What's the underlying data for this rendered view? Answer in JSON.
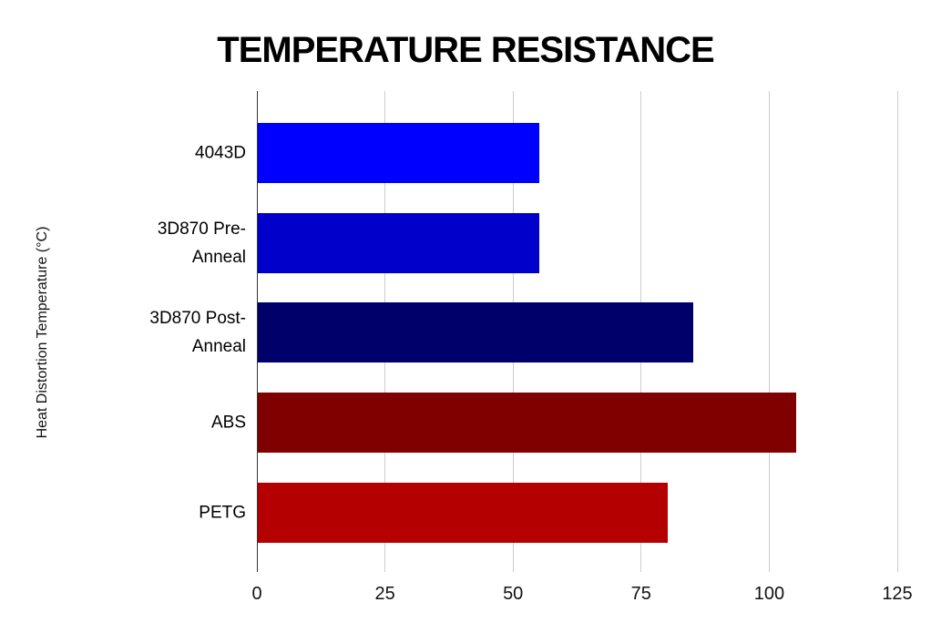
{
  "chart_data": {
    "type": "bar",
    "orientation": "horizontal",
    "title": "TEMPERATURE RESISTANCE",
    "xlabel": "",
    "ylabel": "Heat Distortion Temperature (°C)",
    "categories": [
      "4043D",
      "3D870 Pre-Anneal",
      "3D870 Post-Anneal",
      "ABS",
      "PETG"
    ],
    "values": [
      55,
      55,
      85,
      105,
      80
    ],
    "bar_colors": [
      "#0000FF",
      "#0000CB",
      "#00006B",
      "#800000",
      "#B40000"
    ],
    "x_ticks": [
      0,
      25,
      50,
      75,
      100,
      125
    ],
    "xlim": [
      0,
      125
    ],
    "grid": true,
    "legend": "none",
    "background_color": "#ffffff",
    "gridline_color": "#cccccc",
    "axis_line_color": "#333333",
    "text_color": "#000000"
  }
}
